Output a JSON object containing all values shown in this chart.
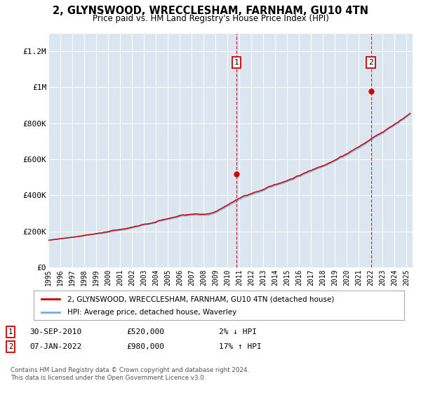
{
  "title": "2, GLYNSWOOD, WRECCLESHAM, FARNHAM, GU10 4TN",
  "subtitle": "Price paid vs. HM Land Registry's House Price Index (HPI)",
  "bg_color": "#dce6f0",
  "legend_label_red": "2, GLYNSWOOD, WRECCLESHAM, FARNHAM, GU10 4TN (detached house)",
  "legend_label_blue": "HPI: Average price, detached house, Waverley",
  "annotation1_label": "1",
  "annotation1_date": "30-SEP-2010",
  "annotation1_price": "£520,000",
  "annotation1_hpi": "2% ↓ HPI",
  "annotation2_label": "2",
  "annotation2_date": "07-JAN-2022",
  "annotation2_price": "£980,000",
  "annotation2_hpi": "17% ↑ HPI",
  "footnote": "Contains HM Land Registry data © Crown copyright and database right 2024.\nThis data is licensed under the Open Government Licence v3.0.",
  "ylim_min": 0,
  "ylim_max": 1300000,
  "yticks": [
    0,
    200000,
    400000,
    600000,
    800000,
    1000000,
    1200000
  ],
  "ytick_labels": [
    "£0",
    "£200K",
    "£400K",
    "£600K",
    "£800K",
    "£1M",
    "£1.2M"
  ],
  "sale1_year": 2010.75,
  "sale1_price": 520000,
  "sale2_year": 2022.03,
  "sale2_price": 980000,
  "red_color": "#cc0000",
  "blue_color": "#7aadd4",
  "xlim_min": 1995,
  "xlim_max": 2025.5
}
